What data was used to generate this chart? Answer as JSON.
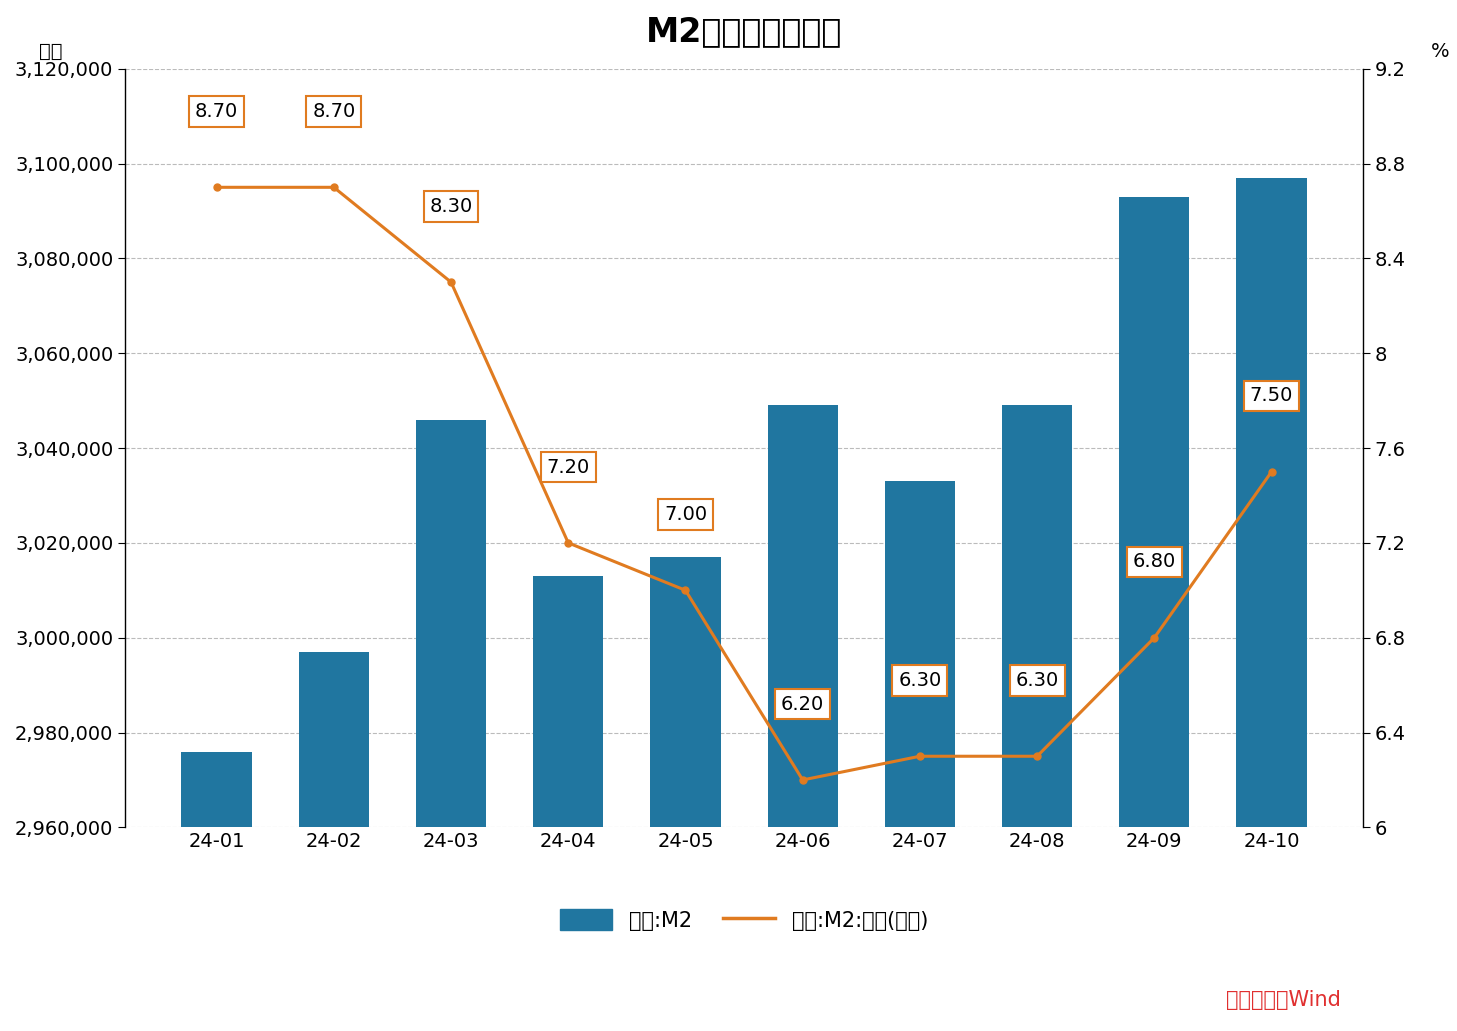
{
  "title": "M2数据及变化情况",
  "categories": [
    "24-01",
    "24-02",
    "24-03",
    "24-04",
    "24-05",
    "24-06",
    "24-07",
    "24-08",
    "24-09",
    "24-10"
  ],
  "m2_values": [
    2976000,
    2997000,
    3046000,
    3013000,
    3017000,
    3049000,
    3033000,
    3049000,
    3093000,
    3097000
  ],
  "yoy_values": [
    8.7,
    8.7,
    8.3,
    7.2,
    7.0,
    6.2,
    6.3,
    6.3,
    6.8,
    7.5
  ],
  "bar_color": "#2076a0",
  "line_color": "#e07b20",
  "left_ylabel": "亿元",
  "right_ylabel": "%",
  "left_ylim": [
    2960000,
    3120000
  ],
  "right_ylim": [
    6.0,
    9.2
  ],
  "left_yticks": [
    2960000,
    2980000,
    3000000,
    3020000,
    3040000,
    3060000,
    3080000,
    3100000,
    3120000
  ],
  "right_yticks": [
    6.0,
    6.4,
    6.8,
    7.2,
    7.6,
    8.0,
    8.4,
    8.8,
    9.2
  ],
  "background_color": "#ffffff",
  "grid_color": "#bbbbbb",
  "title_fontsize": 24,
  "label_fontsize": 14,
  "tick_fontsize": 14,
  "annotation_fontsize": 14,
  "legend_label_m2": "中国:M2",
  "legend_label_yoy": "中国:M2:同比(右轴)",
  "source_text": "数据来源：Wind",
  "source_color": "#e03030",
  "yoy_labels": [
    "8.70",
    "8.70",
    "8.30",
    "7.20",
    "7.00",
    "6.20",
    "6.30",
    "6.30",
    "6.80",
    "7.50"
  ]
}
